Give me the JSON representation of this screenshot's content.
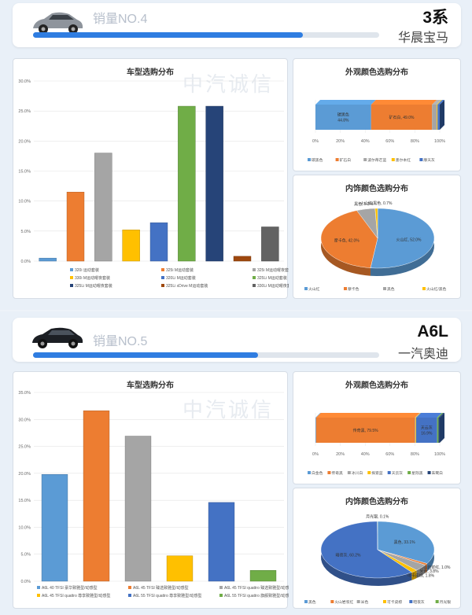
{
  "sections": [
    {
      "rank_label": "销量NO.4",
      "model": "3系",
      "brand": "华晨宝马",
      "progress": 0.78,
      "model_chart": {
        "title": "车型选购分布",
        "type": "bar",
        "ylim": [
          0,
          30
        ],
        "yticks": [
          "0.0%",
          "5.0%",
          "10.0%",
          "15.0%",
          "20.0%",
          "25.0%",
          "30.0%"
        ],
        "categories": [
          "320i 运动套装",
          "325i M运动套装",
          "325i M运动曜夜套装",
          "330i M运动曜夜套装",
          "320Li M运动套装",
          "325Li M运动套装",
          "325Li M运动曜夜套装",
          "325Li xDrive M运动套装",
          "330Li M运动曜夜套装"
        ],
        "values": [
          0.5,
          11.5,
          18.0,
          5.2,
          6.4,
          25.8,
          25.8,
          0.8,
          5.7
        ],
        "colors": [
          "#5b9bd5",
          "#ed7d31",
          "#a5a5a5",
          "#ffc000",
          "#4472c4",
          "#70ad47",
          "#264478",
          "#9e480e",
          "#636363"
        ],
        "watermark": "中汽诚信"
      },
      "exterior_chart": {
        "title": "外观颜色选购分布",
        "type": "bar",
        "segments": [
          {
            "name": "碳黑色",
            "value": 44.8,
            "color": "#5b9bd5",
            "label": "碳黑色\n44.8%"
          },
          {
            "name": "矿石白",
            "value": 49.0,
            "color": "#ed7d31",
            "label": "矿石白, 49.0%"
          },
          {
            "name": "波尔蒂芒蓝",
            "value": 3.8,
            "color": "#a5a5a5",
            "label": ""
          },
          {
            "name": "墨尔本红",
            "value": 0.6,
            "color": "#ffc000",
            "label": ""
          },
          {
            "name": "摩天灰",
            "value": 1.8,
            "color": "#4472c4",
            "label": ""
          }
        ],
        "xticks": [
          "0%",
          "20%",
          "40%",
          "60%",
          "80%",
          "100%"
        ]
      },
      "interior_chart": {
        "title": "内饰颜色选购分布",
        "type": "pie",
        "slices": [
          {
            "name": "火山红",
            "value": 52.0,
            "color": "#5b9bd5",
            "label": "火山红, 52.0%"
          },
          {
            "name": "摩卡色",
            "value": 42.0,
            "color": "#ed7d31",
            "label": "摩卡色, 42.0%"
          },
          {
            "name": "黑色",
            "value": 5.3,
            "color": "#a5a5a5",
            "label": "黑色, 5.3%"
          },
          {
            "name": "火山红/黑色",
            "value": 0.7,
            "color": "#ffc000",
            "label": "火山红/黑色, 0.7%"
          }
        ]
      }
    },
    {
      "rank_label": "销量NO.5",
      "model": "A6L",
      "brand": "一汽奥迪",
      "progress": 0.65,
      "model_chart": {
        "title": "车型选购分布",
        "type": "bar",
        "ylim": [
          0,
          35
        ],
        "yticks": [
          "0.0%",
          "5.0%",
          "10.0%",
          "15.0%",
          "20.0%",
          "25.0%",
          "30.0%",
          "35.0%"
        ],
        "categories": [
          "A6L 40 TFSI 豪华致雅型/动感型",
          "A6L 45 TFSI 臻选致雅型/动感型",
          "A6L 45 TFSI quattro 臻选致雅型/动感型",
          "A6L 45 TFSI quattro 尊享致雅型/动感型",
          "A6L 55 TFSI quattro 尊享致雅型/动感型",
          "A6L 55 TFSI quattro 旗舰致雅型/动感型"
        ],
        "values": [
          19.8,
          31.6,
          26.9,
          4.7,
          14.6,
          2.0
        ],
        "colors": [
          "#5b9bd5",
          "#ed7d31",
          "#a5a5a5",
          "#ffc000",
          "#4472c4",
          "#70ad47"
        ],
        "watermark": "中汽诚信"
      },
      "exterior_chart": {
        "title": "外观颜色选购分布",
        "type": "bar",
        "segments": [
          {
            "name": "白金色",
            "value": 0.5,
            "color": "#5b9bd5",
            "label": ""
          },
          {
            "name": "传奇黑",
            "value": 79.5,
            "color": "#ed7d31",
            "label": "传奇黑, 79.5%"
          },
          {
            "name": "冰川白",
            "value": 0.5,
            "color": "#a5a5a5",
            "label": ""
          },
          {
            "name": "探索蓝",
            "value": 0.5,
            "color": "#ffc000",
            "label": ""
          },
          {
            "name": "天云灰",
            "value": 16.9,
            "color": "#4472c4",
            "label": "天云灰\n16.9%"
          },
          {
            "name": "星际黑",
            "value": 1.1,
            "color": "#70ad47",
            "label": ""
          },
          {
            "name": "朱鹭白",
            "value": 1.0,
            "color": "#264478",
            "label": ""
          }
        ],
        "xticks": [
          "0%",
          "20%",
          "40%",
          "60%",
          "80%",
          "100%"
        ]
      },
      "interior_chart": {
        "title": "内饰颜色选购分布",
        "type": "pie",
        "slices": [
          {
            "name": "黑色",
            "value": 33.1,
            "color": "#5b9bd5",
            "label": "黑色, 33.1%"
          },
          {
            "name": "火山岩浆红",
            "value": 1.0,
            "color": "#ed7d31",
            "label": "火山岩浆红, 1.0%"
          },
          {
            "name": "米色",
            "value": 3.8,
            "color": "#a5a5a5",
            "label": "米色, 3.8%"
          },
          {
            "name": "可卡皮棕",
            "value": 1.8,
            "color": "#ffc000",
            "label": "可卡皮棕, 1.8%"
          },
          {
            "name": "暗夜灰",
            "value": 60.2,
            "color": "#4472c4",
            "label": "暗夜灰, 60.2%"
          },
          {
            "name": "月光银",
            "value": 0.1,
            "color": "#70ad47",
            "label": "月光银, 0.1%"
          }
        ]
      }
    }
  ]
}
